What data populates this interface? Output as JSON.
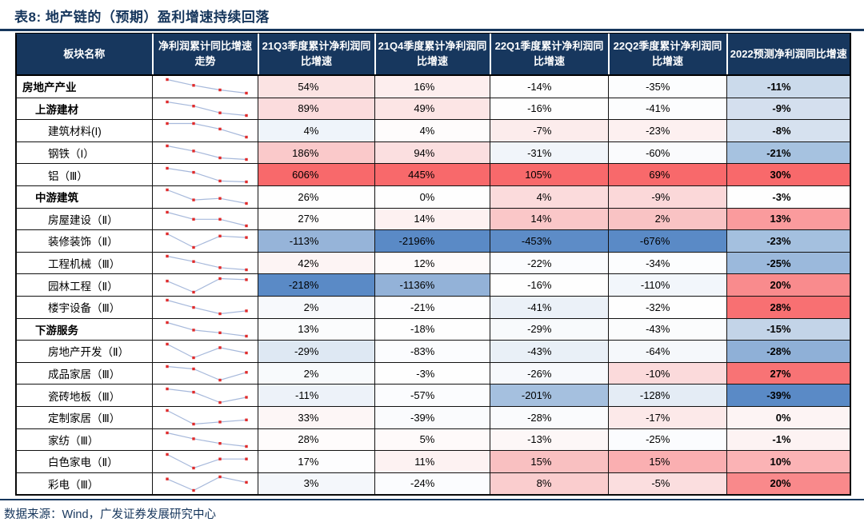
{
  "title": "表8:  地产链的（预期）盈利增速持续回落",
  "source": "数据来源：Wind，广发证券发展研究中心",
  "colors": {
    "header_bg": "#17375E",
    "header_text": "#FFFFFF",
    "title_color": "#16365C",
    "rule_color": "#16365C",
    "scale_max_red": "#F8696B",
    "scale_min_blue": "#5A8AC6",
    "sparkline_line": "#A7B9DB",
    "sparkline_marker": "#E02B2B",
    "grid_border": "#000000"
  },
  "table": {
    "headers": [
      "板块名称",
      "净利润累计同比增速走势",
      "21Q3季度累计净利润同比增速",
      "21Q4季度累计净利润同比增速",
      "22Q1季度累计净利润同比增速",
      "22Q2季度累计净利润同比增速",
      "2022预测净利润同比增速"
    ],
    "column_keys": [
      "21q3",
      "21q4",
      "22q1",
      "22q2",
      "2022e"
    ],
    "rows": [
      {
        "name": "房地产产业",
        "level": 0,
        "values": [
          "54%",
          "16%",
          "-14%",
          "-35%",
          "-11%"
        ],
        "trend": [
          54,
          16,
          -14,
          -35
        ],
        "cell_colors": [
          "#FBE3E3",
          "#FDEEEE",
          "#FEFEFE",
          "#FCFDFE",
          "#CBDAEB"
        ]
      },
      {
        "name": "上游建材",
        "level": 1,
        "values": [
          "89%",
          "49%",
          "-16%",
          "-41%",
          "-9%"
        ],
        "trend": [
          89,
          49,
          -16,
          -41
        ],
        "cell_colors": [
          "#FBDCDD",
          "#FCE5E5",
          "#FEFEFE",
          "#FCFDFE",
          "#D4DFEE"
        ]
      },
      {
        "name": "建筑材料(I)",
        "level": 2,
        "values": [
          "4%",
          "4%",
          "-7%",
          "-23%",
          "-8%"
        ],
        "trend": [
          4,
          4,
          -7,
          -23
        ],
        "cell_colors": [
          "#EFF4FA",
          "#FEFCFC",
          "#FCECEC",
          "#FDF0F0",
          "#D6E1EF"
        ]
      },
      {
        "name": "钢铁（I）",
        "level": 2,
        "values": [
          "186%",
          "94%",
          "-31%",
          "-60%",
          "-21%"
        ],
        "trend": [
          186,
          94,
          -31,
          -60
        ],
        "cell_colors": [
          "#FAC9CA",
          "#FBDFE0",
          "#F1F5FA",
          "#FAFBFD",
          "#A6C2E0"
        ]
      },
      {
        "name": "铝（Ⅲ）",
        "level": 2,
        "values": [
          "606%",
          "445%",
          "105%",
          "69%",
          "30%"
        ],
        "trend": [
          606,
          445,
          105,
          69
        ],
        "cell_colors": [
          "#F8696B",
          "#F8696B",
          "#F8696B",
          "#F8696B",
          "#F8696B"
        ]
      },
      {
        "name": "中游建筑",
        "level": 1,
        "values": [
          "26%",
          "0%",
          "4%",
          "-9%",
          "-3%"
        ],
        "trend": [
          26,
          0,
          4,
          -9
        ],
        "cell_colors": [
          "#FEFEFE",
          "#FEFEFE",
          "#FBDBDC",
          "#FBD8D9",
          "#FEFEFE"
        ]
      },
      {
        "name": "房屋建设（Ⅱ）",
        "level": 2,
        "values": [
          "27%",
          "14%",
          "14%",
          "2%",
          "13%"
        ],
        "trend": [
          27,
          14,
          14,
          2
        ],
        "cell_colors": [
          "#FEFDFD",
          "#FDF1F1",
          "#FAC7C8",
          "#F9C3C4",
          "#FA9B9D"
        ]
      },
      {
        "name": "装修装饰（Ⅱ）",
        "level": 2,
        "values": [
          "-113%",
          "-2196%",
          "-453%",
          "-676%",
          "-23%"
        ],
        "trend": [
          -113,
          -2196,
          -453,
          -676
        ],
        "cell_colors": [
          "#96B4D9",
          "#5A8AC6",
          "#5D8CC7",
          "#5A8AC6",
          "#A4C0DF"
        ]
      },
      {
        "name": "工程机械（Ⅲ）",
        "level": 2,
        "values": [
          "42%",
          "12%",
          "-22%",
          "-34%",
          "-25%"
        ],
        "trend": [
          42,
          12,
          -22,
          -34
        ],
        "cell_colors": [
          "#FDF4F4",
          "#FEFAFA",
          "#FBFCFE",
          "#FCFDFE",
          "#9BB9DC"
        ]
      },
      {
        "name": "园林工程（Ⅱ）",
        "level": 2,
        "values": [
          "-218%",
          "-1136%",
          "-16%",
          "-110%",
          "20%"
        ],
        "trend": [
          -218,
          -1136,
          -16,
          -110
        ],
        "cell_colors": [
          "#5A8AC6",
          "#93B2D8",
          "#FEFEFE",
          "#F2F6FB",
          "#F98B8D"
        ]
      },
      {
        "name": "楼宇设备（Ⅲ）",
        "level": 2,
        "values": [
          "2%",
          "-21%",
          "-41%",
          "-32%",
          "28%"
        ],
        "trend": [
          2,
          -21,
          -41,
          -32
        ],
        "cell_colors": [
          "#F7F9FC",
          "#FDFDFE",
          "#EBF1F8",
          "#FEFEFE",
          "#F87072"
        ]
      },
      {
        "name": "下游服务",
        "level": 1,
        "values": [
          "13%",
          "-18%",
          "-29%",
          "-43%",
          "-15%"
        ],
        "trend": [
          13,
          -18,
          -29,
          -43
        ],
        "cell_colors": [
          "#FBFCFD",
          "#FEFEFE",
          "#F8FAFC",
          "#FBFCFD",
          "#C3D4E8"
        ]
      },
      {
        "name": "房地产开发（Ⅱ）",
        "level": 2,
        "values": [
          "-29%",
          "-83%",
          "-43%",
          "-64%",
          "-28%"
        ],
        "trend": [
          -29,
          -83,
          -43,
          -64
        ],
        "cell_colors": [
          "#DEE8F3",
          "#FBFCFE",
          "#E9F0F7",
          "#F5F8FB",
          "#8FB0D7"
        ]
      },
      {
        "name": "成品家居（Ⅲ）",
        "level": 2,
        "values": [
          "2%",
          "-3%",
          "-26%",
          "-10%",
          "27%"
        ],
        "trend": [
          2,
          -3,
          -26,
          -10
        ],
        "cell_colors": [
          "#F8FAFC",
          "#FEFEFE",
          "#F7F9FC",
          "#FBDADB",
          "#F87375"
        ]
      },
      {
        "name": "瓷砖地板（Ⅲ）",
        "level": 2,
        "values": [
          "-11%",
          "-57%",
          "-201%",
          "-128%",
          "-39%"
        ],
        "trend": [
          -11,
          -57,
          -201,
          -128
        ],
        "cell_colors": [
          "#EDF2F9",
          "#FBFCFE",
          "#A5C0DF",
          "#E4ECF5",
          "#5A8AC6"
        ]
      },
      {
        "name": "定制家居（Ⅲ）",
        "level": 2,
        "values": [
          "33%",
          "-39%",
          "-28%",
          "-17%",
          "0%"
        ],
        "trend": [
          33,
          -39,
          -28,
          -17
        ],
        "cell_colors": [
          "#FDF6F6",
          "#FAFBFD",
          "#FAFBFD",
          "#FCE9E9",
          "#FDF4F4"
        ]
      },
      {
        "name": "家纺（Ⅲ）",
        "level": 2,
        "values": [
          "28%",
          "5%",
          "-13%",
          "-25%",
          "-1%"
        ],
        "trend": [
          28,
          5,
          -13,
          -25
        ],
        "cell_colors": [
          "#FEFCFC",
          "#FEFAFA",
          "#FDF7F7",
          "#FBFCFE",
          "#FDF3F3"
        ]
      },
      {
        "name": "白色家电（Ⅱ）",
        "level": 2,
        "values": [
          "17%",
          "11%",
          "15%",
          "15%",
          "10%"
        ],
        "trend": [
          17,
          11,
          15,
          15
        ],
        "cell_colors": [
          "#FDFDFE",
          "#FDF2F2",
          "#F9C0C1",
          "#FAAFB1",
          "#FBB3B5"
        ]
      },
      {
        "name": "彩电（Ⅲ）",
        "level": 2,
        "values": [
          "3%",
          "-24%",
          "8%",
          "-5%",
          "20%"
        ],
        "trend": [
          3,
          -24,
          8,
          -5
        ],
        "cell_colors": [
          "#F4F7FB",
          "#FBFCFE",
          "#FACDCE",
          "#FBDEDF",
          "#F9898B"
        ]
      }
    ]
  }
}
